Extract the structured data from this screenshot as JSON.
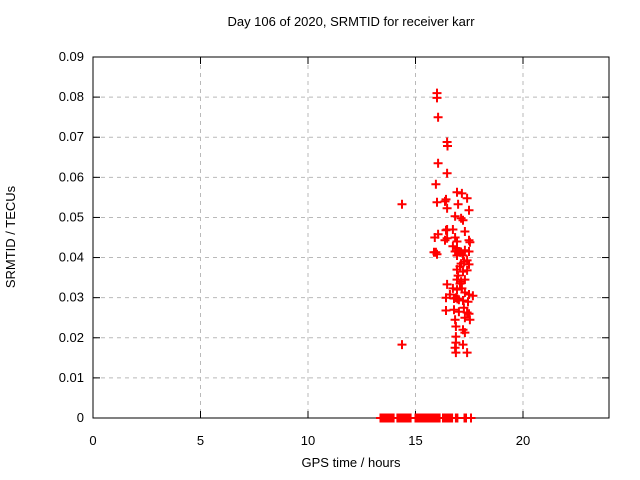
{
  "colors": {
    "marker": "#ff0000",
    "grid": "#b9b9b9",
    "axis": "#000000",
    "text": "#000000",
    "background": "#ffffff"
  },
  "chart_data": {
    "type": "scatter",
    "title": "Day 106 of 2020, SRMTID for receiver karr",
    "xlabel": "GPS time / hours",
    "ylabel": "SRMTID / TECUs",
    "xlim": [
      0,
      24
    ],
    "ylim": [
      0,
      0.09
    ],
    "grid": true,
    "legend": "none",
    "marker": "plus",
    "xticks": [
      [
        0,
        "0"
      ],
      [
        5,
        "5"
      ],
      [
        10,
        "10"
      ],
      [
        15,
        "15"
      ],
      [
        20,
        "20"
      ]
    ],
    "yticks": [
      [
        0,
        "0"
      ],
      [
        0.01,
        "0.01"
      ],
      [
        0.02,
        "0.02"
      ],
      [
        0.03,
        "0.03"
      ],
      [
        0.04,
        "0.04"
      ],
      [
        0.05,
        "0.05"
      ],
      [
        0.06,
        "0.06"
      ],
      [
        0.07,
        "0.07"
      ],
      [
        0.08,
        "0.08"
      ],
      [
        0.09,
        "0.09"
      ]
    ],
    "series": [
      {
        "name": "srmtid-values",
        "points": [
          [
            16.0,
            0.081
          ],
          [
            16.0,
            0.0798
          ],
          [
            16.05,
            0.075
          ],
          [
            16.47,
            0.0688
          ],
          [
            16.49,
            0.0678
          ],
          [
            16.05,
            0.0635
          ],
          [
            16.47,
            0.061
          ],
          [
            15.95,
            0.0583
          ],
          [
            16.93,
            0.0563
          ],
          [
            17.16,
            0.056
          ],
          [
            17.4,
            0.0548
          ],
          [
            16.42,
            0.0545
          ],
          [
            16.37,
            0.054
          ],
          [
            14.37,
            0.0533
          ],
          [
            16.0,
            0.0538
          ],
          [
            16.98,
            0.0533
          ],
          [
            16.47,
            0.0523
          ],
          [
            17.49,
            0.0518
          ],
          [
            16.84,
            0.0503
          ],
          [
            17.12,
            0.0498
          ],
          [
            17.21,
            0.0493
          ],
          [
            16.74,
            0.047
          ],
          [
            16.47,
            0.047
          ],
          [
            16.42,
            0.0468
          ],
          [
            17.3,
            0.0465
          ],
          [
            16.05,
            0.0458
          ],
          [
            15.9,
            0.045
          ],
          [
            16.84,
            0.045
          ],
          [
            16.47,
            0.0448
          ],
          [
            16.37,
            0.0443
          ],
          [
            17.49,
            0.0443
          ],
          [
            16.93,
            0.044
          ],
          [
            17.53,
            0.0438
          ],
          [
            16.74,
            0.0428
          ],
          [
            16.93,
            0.0423
          ],
          [
            17.3,
            0.0418
          ],
          [
            16.84,
            0.0415
          ],
          [
            17.02,
            0.0415
          ],
          [
            17.49,
            0.0415
          ],
          [
            15.86,
            0.0413
          ],
          [
            15.95,
            0.0413
          ],
          [
            17.12,
            0.0413
          ],
          [
            17.07,
            0.0413
          ],
          [
            16.0,
            0.0408
          ],
          [
            16.93,
            0.0405
          ],
          [
            17.21,
            0.0405
          ],
          [
            17.4,
            0.0393
          ],
          [
            17.26,
            0.039
          ],
          [
            17.12,
            0.0385
          ],
          [
            17.49,
            0.0383
          ],
          [
            17.07,
            0.0378
          ],
          [
            16.93,
            0.037
          ],
          [
            17.4,
            0.0368
          ],
          [
            17.21,
            0.0365
          ],
          [
            16.98,
            0.0355
          ],
          [
            17.3,
            0.0345
          ],
          [
            16.93,
            0.0345
          ],
          [
            17.12,
            0.034
          ],
          [
            17.07,
            0.0335
          ],
          [
            16.47,
            0.0333
          ],
          [
            16.74,
            0.0323
          ],
          [
            17.16,
            0.0323
          ],
          [
            16.93,
            0.032
          ],
          [
            17.3,
            0.0313
          ],
          [
            17.49,
            0.0308
          ],
          [
            16.6,
            0.0308
          ],
          [
            17.67,
            0.0305
          ],
          [
            16.88,
            0.03
          ],
          [
            16.42,
            0.03
          ],
          [
            17.02,
            0.0295
          ],
          [
            16.95,
            0.0297
          ],
          [
            17.21,
            0.0293
          ],
          [
            17.44,
            0.029
          ],
          [
            16.79,
            0.0298
          ],
          [
            17.25,
            0.0275
          ],
          [
            16.79,
            0.027
          ],
          [
            16.42,
            0.0268
          ],
          [
            17.02,
            0.0265
          ],
          [
            17.4,
            0.0263
          ],
          [
            17.49,
            0.026
          ],
          [
            17.3,
            0.025
          ],
          [
            16.84,
            0.0245
          ],
          [
            17.53,
            0.0245
          ],
          [
            16.88,
            0.0228
          ],
          [
            17.21,
            0.022
          ],
          [
            17.3,
            0.0213
          ],
          [
            16.88,
            0.0203
          ],
          [
            16.88,
            0.0188
          ],
          [
            14.37,
            0.0183
          ],
          [
            17.21,
            0.0183
          ],
          [
            16.84,
            0.0175
          ],
          [
            16.88,
            0.0163
          ],
          [
            17.4,
            0.0163
          ]
        ]
      },
      {
        "name": "zero-baseline-values",
        "points": [
          [
            13.37,
            0
          ],
          [
            13.42,
            0
          ],
          [
            13.49,
            0
          ],
          [
            13.56,
            0
          ],
          [
            13.63,
            0
          ],
          [
            13.7,
            0
          ],
          [
            13.77,
            0
          ],
          [
            13.84,
            0
          ],
          [
            13.91,
            0
          ],
          [
            13.98,
            0
          ],
          [
            14.16,
            0
          ],
          [
            14.21,
            0
          ],
          [
            14.28,
            0
          ],
          [
            14.35,
            0
          ],
          [
            14.42,
            0
          ],
          [
            14.49,
            0
          ],
          [
            14.56,
            0
          ],
          [
            14.63,
            0
          ],
          [
            14.7,
            0
          ],
          [
            14.77,
            0
          ],
          [
            15.0,
            0
          ],
          [
            15.07,
            0
          ],
          [
            15.14,
            0
          ],
          [
            15.21,
            0
          ],
          [
            15.28,
            0
          ],
          [
            15.35,
            0
          ],
          [
            15.42,
            0
          ],
          [
            15.49,
            0
          ],
          [
            15.56,
            0
          ],
          [
            15.63,
            0
          ],
          [
            15.7,
            0
          ],
          [
            15.77,
            0
          ],
          [
            15.84,
            0
          ],
          [
            15.91,
            0
          ],
          [
            15.98,
            0
          ],
          [
            16.05,
            0
          ],
          [
            16.12,
            0
          ],
          [
            16.28,
            0
          ],
          [
            16.35,
            0
          ],
          [
            16.42,
            0
          ],
          [
            16.49,
            0
          ],
          [
            16.56,
            0
          ],
          [
            16.63,
            0
          ],
          [
            16.7,
            0
          ],
          [
            16.88,
            0
          ],
          [
            16.95,
            0
          ],
          [
            17.28,
            0
          ],
          [
            17.35,
            0
          ],
          [
            17.58,
            0
          ]
        ]
      }
    ]
  }
}
